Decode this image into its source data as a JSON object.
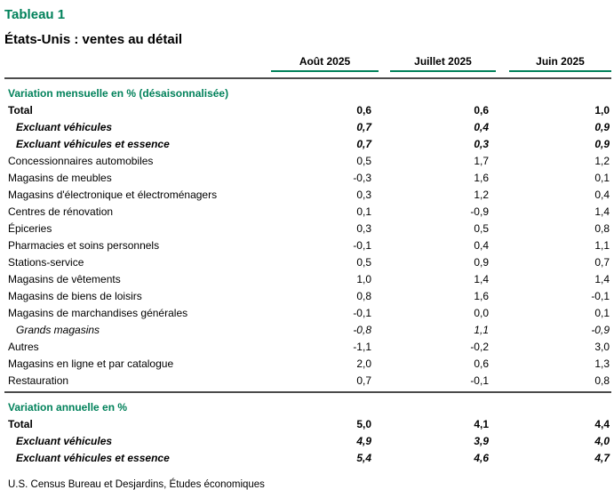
{
  "colors": {
    "accent": "#00815A",
    "rule": "#4b4b4b"
  },
  "title": "Tableau 1",
  "subtitle": "États-Unis : ventes au détail",
  "columns": [
    "Août 2025",
    "Juillet 2025",
    "Juin 2025"
  ],
  "sections": [
    {
      "header": "Variation mensuelle en % (désaisonnalisée)",
      "rows": [
        {
          "label": "Total",
          "style": "bold",
          "indent": false,
          "values": [
            "0,6",
            "0,6",
            "1,0"
          ]
        },
        {
          "label": "Excluant véhicules",
          "style": "bold-italic",
          "indent": true,
          "values": [
            "0,7",
            "0,4",
            "0,9"
          ]
        },
        {
          "label": "Excluant véhicules et essence",
          "style": "bold-italic",
          "indent": true,
          "values": [
            "0,7",
            "0,3",
            "0,9"
          ]
        },
        {
          "label": "Concessionnaires automobiles",
          "style": "normal",
          "indent": false,
          "values": [
            "0,5",
            "1,7",
            "1,2"
          ]
        },
        {
          "label": "Magasins de meubles",
          "style": "normal",
          "indent": false,
          "values": [
            "-0,3",
            "1,6",
            "0,1"
          ]
        },
        {
          "label": "Magasins d'électronique et électroménagers",
          "style": "normal",
          "indent": false,
          "values": [
            "0,3",
            "1,2",
            "0,4"
          ]
        },
        {
          "label": "Centres de rénovation",
          "style": "normal",
          "indent": false,
          "values": [
            "0,1",
            "-0,9",
            "1,4"
          ]
        },
        {
          "label": "Épiceries",
          "style": "normal",
          "indent": false,
          "values": [
            "0,3",
            "0,5",
            "0,8"
          ]
        },
        {
          "label": "Pharmacies et soins personnels",
          "style": "normal",
          "indent": false,
          "values": [
            "-0,1",
            "0,4",
            "1,1"
          ]
        },
        {
          "label": "Stations-service",
          "style": "normal",
          "indent": false,
          "values": [
            "0,5",
            "0,9",
            "0,7"
          ]
        },
        {
          "label": "Magasins de vêtements",
          "style": "normal",
          "indent": false,
          "values": [
            "1,0",
            "1,4",
            "1,4"
          ]
        },
        {
          "label": "Magasins de biens de loisirs",
          "style": "normal",
          "indent": false,
          "values": [
            "0,8",
            "1,6",
            "-0,1"
          ]
        },
        {
          "label": "Magasins de marchandises générales",
          "style": "normal",
          "indent": false,
          "values": [
            "-0,1",
            "0,0",
            "0,1"
          ]
        },
        {
          "label": "Grands magasins",
          "style": "italic",
          "indent": true,
          "values": [
            "-0,8",
            "1,1",
            "-0,9"
          ]
        },
        {
          "label": "Autres",
          "style": "normal",
          "indent": false,
          "values": [
            "-1,1",
            "-0,2",
            "3,0"
          ]
        },
        {
          "label": "Magasins en ligne et par catalogue",
          "style": "normal",
          "indent": false,
          "values": [
            "2,0",
            "0,6",
            "1,3"
          ]
        },
        {
          "label": "Restauration",
          "style": "normal",
          "indent": false,
          "values": [
            "0,7",
            "-0,1",
            "0,8"
          ]
        }
      ]
    },
    {
      "header": "Variation annuelle en %",
      "rows": [
        {
          "label": "Total",
          "style": "bold",
          "indent": false,
          "values": [
            "5,0",
            "4,1",
            "4,4"
          ]
        },
        {
          "label": "Excluant véhicules",
          "style": "bold-italic",
          "indent": true,
          "values": [
            "4,9",
            "3,9",
            "4,0"
          ]
        },
        {
          "label": "Excluant véhicules et essence",
          "style": "bold-italic",
          "indent": true,
          "values": [
            "5,4",
            "4,6",
            "4,7"
          ]
        }
      ]
    }
  ],
  "source": "U.S. Census Bureau et Desjardins, Études économiques",
  "chart_data": {
    "type": "table",
    "title": "Tableau 1 — États-Unis : ventes au détail",
    "columns": [
      "Août 2025",
      "Juillet 2025",
      "Juin 2025"
    ],
    "sections": [
      {
        "name": "Variation mensuelle en % (désaisonnalisée)",
        "rows": [
          [
            "Total",
            0.6,
            0.6,
            1.0
          ],
          [
            "Excluant véhicules",
            0.7,
            0.4,
            0.9
          ],
          [
            "Excluant véhicules et essence",
            0.7,
            0.3,
            0.9
          ],
          [
            "Concessionnaires automobiles",
            0.5,
            1.7,
            1.2
          ],
          [
            "Magasins de meubles",
            -0.3,
            1.6,
            0.1
          ],
          [
            "Magasins d'électronique et électroménagers",
            0.3,
            1.2,
            0.4
          ],
          [
            "Centres de rénovation",
            0.1,
            -0.9,
            1.4
          ],
          [
            "Épiceries",
            0.3,
            0.5,
            0.8
          ],
          [
            "Pharmacies et soins personnels",
            -0.1,
            0.4,
            1.1
          ],
          [
            "Stations-service",
            0.5,
            0.9,
            0.7
          ],
          [
            "Magasins de vêtements",
            1.0,
            1.4,
            1.4
          ],
          [
            "Magasins de biens de loisirs",
            0.8,
            1.6,
            -0.1
          ],
          [
            "Magasins de marchandises générales",
            -0.1,
            0.0,
            0.1
          ],
          [
            "Grands magasins",
            -0.8,
            1.1,
            -0.9
          ],
          [
            "Autres",
            -1.1,
            -0.2,
            3.0
          ],
          [
            "Magasins en ligne et par catalogue",
            2.0,
            0.6,
            1.3
          ],
          [
            "Restauration",
            0.7,
            -0.1,
            0.8
          ]
        ]
      },
      {
        "name": "Variation annuelle en %",
        "rows": [
          [
            "Total",
            5.0,
            4.1,
            4.4
          ],
          [
            "Excluant véhicules",
            4.9,
            3.9,
            4.0
          ],
          [
            "Excluant véhicules et essence",
            5.4,
            4.6,
            4.7
          ]
        ]
      }
    ],
    "source": "U.S. Census Bureau et Desjardins, Études économiques"
  }
}
